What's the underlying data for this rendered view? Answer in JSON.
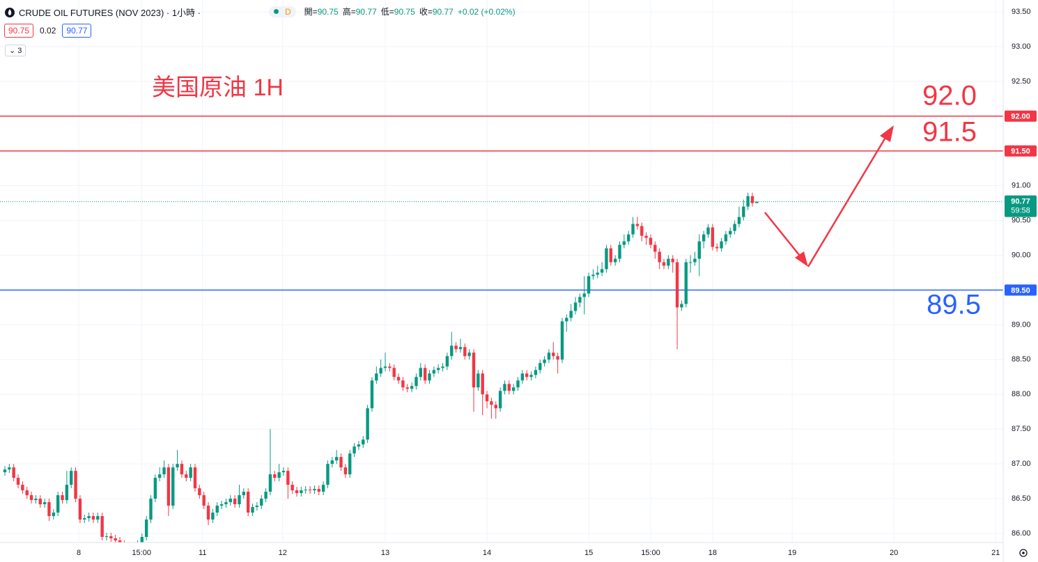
{
  "chart_data": {
    "type": "candlestick",
    "up_color": "#089981",
    "down_color": "#f23645",
    "grid": true,
    "title": "美国原油 1H",
    "ylim": [
      85.87,
      93.67
    ],
    "xlim": [
      -1.1,
      225.7
    ],
    "yticks": [
      {
        "value": 86,
        "label": "86.00"
      },
      {
        "value": 86.5,
        "label": "86.50"
      },
      {
        "value": 87,
        "label": "87.00"
      },
      {
        "value": 87.5,
        "label": "87.50"
      },
      {
        "value": 88,
        "label": "88.00"
      },
      {
        "value": 88.5,
        "label": "88.50"
      },
      {
        "value": 89,
        "label": "89.00"
      },
      {
        "value": 89.5,
        "label": "89.50"
      },
      {
        "value": 90,
        "label": "90.00"
      },
      {
        "value": 90.5,
        "label": "90.50"
      },
      {
        "value": 91,
        "label": "91.00"
      },
      {
        "value": 91.5,
        "label": "91.50"
      },
      {
        "value": 92,
        "label": "92.00"
      },
      {
        "value": 92.5,
        "label": "92.50"
      },
      {
        "value": 93,
        "label": "93.00"
      },
      {
        "value": 93.5,
        "label": "93.50"
      }
    ],
    "xticks": [
      {
        "value": 16.7,
        "label": "8"
      },
      {
        "value": 30.9,
        "label": "15:00"
      },
      {
        "value": 44.7,
        "label": "11"
      },
      {
        "value": 62.8,
        "label": "12"
      },
      {
        "value": 86,
        "label": "13"
      },
      {
        "value": 109,
        "label": "14"
      },
      {
        "value": 132,
        "label": "15"
      },
      {
        "value": 146,
        "label": "15:00"
      },
      {
        "value": 160,
        "label": "18"
      },
      {
        "value": 178,
        "label": "19"
      },
      {
        "value": 201,
        "label": "20"
      },
      {
        "value": 224,
        "label": "21"
      }
    ],
    "open": [
      86.88,
      86.92,
      86.95,
      86.8,
      86.7,
      86.62,
      86.55,
      86.48,
      86.5,
      86.42,
      86.45,
      86.25,
      86.3,
      86.55,
      86.48,
      86.7,
      86.9,
      86.5,
      86.2,
      86.22,
      86.25,
      86.2,
      86.25,
      85.95,
      85.96,
      85.93,
      85.9,
      85.85,
      85.8,
      85.8,
      85.82,
      85.85,
      85.95,
      86.2,
      86.5,
      86.8,
      86.85,
      86.95,
      86.4,
      86.95,
      87.0,
      86.85,
      86.8,
      86.95,
      86.65,
      86.55,
      86.4,
      86.2,
      86.3,
      86.4,
      86.42,
      86.45,
      86.5,
      86.42,
      86.55,
      86.6,
      86.3,
      86.38,
      86.4,
      86.5,
      86.6,
      86.85,
      86.8,
      86.88,
      86.9,
      86.7,
      86.62,
      86.58,
      86.62,
      86.63,
      86.62,
      86.64,
      86.6,
      86.7,
      87.0,
      87.05,
      87.1,
      86.95,
      86.85,
      87.15,
      87.25,
      87.28,
      87.35,
      87.8,
      88.2,
      88.3,
      88.38,
      88.4,
      88.38,
      88.25,
      88.2,
      88.1,
      88.08,
      88.12,
      88.25,
      88.38,
      88.2,
      88.3,
      88.35,
      88.38,
      88.4,
      88.55,
      88.7,
      88.65,
      88.68,
      88.55,
      88.6,
      88.1,
      88.3,
      88.0,
      87.9,
      87.85,
      87.8,
      88.05,
      88.15,
      88.05,
      88.1,
      88.2,
      88.3,
      88.25,
      88.28,
      88.35,
      88.45,
      88.5,
      88.6,
      88.55,
      88.5,
      89.05,
      89.1,
      89.2,
      89.32,
      89.4,
      89.45,
      89.7,
      89.72,
      89.75,
      89.8,
      90.1,
      89.9,
      89.95,
      90.15,
      90.2,
      90.3,
      90.45,
      90.42,
      90.28,
      90.25,
      90.15,
      90.05,
      89.9,
      89.85,
      89.95,
      89.9,
      89.25,
      89.3,
      89.9,
      89.9,
      89.95,
      90.2,
      90.3,
      90.4,
      90.12,
      90.1,
      90.2,
      90.3,
      90.35,
      90.45,
      90.55,
      90.7,
      90.85,
      90.75
    ],
    "high": [
      86.97,
      87.0,
      87.0,
      86.85,
      86.75,
      86.67,
      86.6,
      86.55,
      86.55,
      86.5,
      86.5,
      86.35,
      86.6,
      86.6,
      86.9,
      86.95,
      86.95,
      86.55,
      86.27,
      86.3,
      86.3,
      86.3,
      86.3,
      86.01,
      86.01,
      85.98,
      85.95,
      85.9,
      85.85,
      85.87,
      85.9,
      86.0,
      86.25,
      86.55,
      86.85,
      86.95,
      87.05,
      87.0,
      87.0,
      87.2,
      87.05,
      86.9,
      87.0,
      87.0,
      86.7,
      86.6,
      86.45,
      86.35,
      86.45,
      86.47,
      86.5,
      86.55,
      86.55,
      86.7,
      86.65,
      86.65,
      86.43,
      86.45,
      86.55,
      86.65,
      87.5,
      86.9,
      87.0,
      86.95,
      86.95,
      86.75,
      86.67,
      86.67,
      86.68,
      86.68,
      86.69,
      86.69,
      86.75,
      87.05,
      87.1,
      87.2,
      87.15,
      87.0,
      87.2,
      87.3,
      87.33,
      87.4,
      87.85,
      88.25,
      88.4,
      88.5,
      88.6,
      88.45,
      88.43,
      88.3,
      88.25,
      88.15,
      88.17,
      88.3,
      88.45,
      88.43,
      88.35,
      88.4,
      88.43,
      88.45,
      88.6,
      88.9,
      88.75,
      88.8,
      88.73,
      88.65,
      88.65,
      88.35,
      88.35,
      88.05,
      87.95,
      87.9,
      88.1,
      88.2,
      88.2,
      88.15,
      88.25,
      88.35,
      88.35,
      88.33,
      88.4,
      88.5,
      88.55,
      88.65,
      88.75,
      88.6,
      89.1,
      89.15,
      89.3,
      89.4,
      89.45,
      89.7,
      89.75,
      89.8,
      89.85,
      89.9,
      90.15,
      90.15,
      90.0,
      90.2,
      90.3,
      90.35,
      90.55,
      90.55,
      90.47,
      90.33,
      90.3,
      90.2,
      90.1,
      89.95,
      90.0,
      90.0,
      89.95,
      89.35,
      89.95,
      90.0,
      90.05,
      90.3,
      90.35,
      90.45,
      90.45,
      90.17,
      90.25,
      90.35,
      90.4,
      90.5,
      90.7,
      90.8,
      90.9,
      90.9,
      90.77
    ],
    "low": [
      86.83,
      86.87,
      86.75,
      86.65,
      86.57,
      86.5,
      86.43,
      86.43,
      86.37,
      86.37,
      86.18,
      86.2,
      86.25,
      86.43,
      86.43,
      86.65,
      86.45,
      86.15,
      86.15,
      86.17,
      86.15,
      86.15,
      85.9,
      85.9,
      85.88,
      85.85,
      85.8,
      85.75,
      85.75,
      85.75,
      85.77,
      85.8,
      85.9,
      86.15,
      86.45,
      86.75,
      86.8,
      86.25,
      86.35,
      86.9,
      86.8,
      86.75,
      86.75,
      86.6,
      86.5,
      86.35,
      86.12,
      86.15,
      86.25,
      86.35,
      86.37,
      86.4,
      86.37,
      86.37,
      86.5,
      86.25,
      86.25,
      86.33,
      86.35,
      86.45,
      86.55,
      86.75,
      86.75,
      86.83,
      86.5,
      86.57,
      86.53,
      86.53,
      86.57,
      86.57,
      86.57,
      86.55,
      86.55,
      86.65,
      86.95,
      87.0,
      86.9,
      86.8,
      86.8,
      87.1,
      87.2,
      87.23,
      87.3,
      87.75,
      88.15,
      88.25,
      88.33,
      88.33,
      88.2,
      88.15,
      88.05,
      88.03,
      88.03,
      88.07,
      88.2,
      88.15,
      88.15,
      88.25,
      88.3,
      88.33,
      88.35,
      88.5,
      88.6,
      88.6,
      88.5,
      88.5,
      87.75,
      88.05,
      87.7,
      87.8,
      87.65,
      87.65,
      87.75,
      88.0,
      88.0,
      88.0,
      88.05,
      88.15,
      88.2,
      88.2,
      88.23,
      88.3,
      88.4,
      88.45,
      88.5,
      88.3,
      88.45,
      88.9,
      89.05,
      89.15,
      89.25,
      89.15,
      89.4,
      89.65,
      89.67,
      89.7,
      89.75,
      89.85,
      89.85,
      89.9,
      90.1,
      90.15,
      90.25,
      90.37,
      90.2,
      90.15,
      90.1,
      89.95,
      89.8,
      89.8,
      89.8,
      89.75,
      88.65,
      89.2,
      89.25,
      89.75,
      89.85,
      89.7,
      90.1,
      90.25,
      90.07,
      90.05,
      90.05,
      90.15,
      90.25,
      90.3,
      90.4,
      90.5,
      90.65,
      90.7,
      90.75
    ],
    "close": [
      86.92,
      86.95,
      86.8,
      86.7,
      86.62,
      86.55,
      86.48,
      86.5,
      86.42,
      86.45,
      86.25,
      86.3,
      86.55,
      86.48,
      86.7,
      86.9,
      86.5,
      86.2,
      86.22,
      86.25,
      86.2,
      86.25,
      85.95,
      85.96,
      85.93,
      85.9,
      85.85,
      85.8,
      85.8,
      85.82,
      85.85,
      85.95,
      86.2,
      86.5,
      86.8,
      86.85,
      86.95,
      86.4,
      86.95,
      87.0,
      86.85,
      86.8,
      86.95,
      86.65,
      86.55,
      86.4,
      86.2,
      86.3,
      86.4,
      86.42,
      86.45,
      86.5,
      86.42,
      86.55,
      86.6,
      86.3,
      86.38,
      86.4,
      86.5,
      86.6,
      86.85,
      86.8,
      86.88,
      86.9,
      86.7,
      86.62,
      86.58,
      86.62,
      86.63,
      86.62,
      86.64,
      86.6,
      86.7,
      87.0,
      87.05,
      87.1,
      86.95,
      86.85,
      87.15,
      87.25,
      87.28,
      87.35,
      87.8,
      88.2,
      88.3,
      88.38,
      88.4,
      88.38,
      88.25,
      88.2,
      88.1,
      88.08,
      88.12,
      88.25,
      88.38,
      88.2,
      88.3,
      88.35,
      88.38,
      88.4,
      88.55,
      88.7,
      88.65,
      88.68,
      88.55,
      88.6,
      88.1,
      88.3,
      88.0,
      87.9,
      87.85,
      87.8,
      88.05,
      88.15,
      88.05,
      88.1,
      88.2,
      88.3,
      88.25,
      88.28,
      88.35,
      88.45,
      88.5,
      88.6,
      88.55,
      88.5,
      89.05,
      89.1,
      89.2,
      89.32,
      89.4,
      89.45,
      89.7,
      89.72,
      89.75,
      89.8,
      90.1,
      89.9,
      89.95,
      90.15,
      90.2,
      90.3,
      90.45,
      90.42,
      90.28,
      90.25,
      90.15,
      90.05,
      89.9,
      89.85,
      89.95,
      89.9,
      89.25,
      89.3,
      89.9,
      89.9,
      89.95,
      90.2,
      90.3,
      90.4,
      90.12,
      90.1,
      90.2,
      90.3,
      90.35,
      90.45,
      90.55,
      90.7,
      90.85,
      90.75,
      90.77
    ],
    "hlines": [
      {
        "value": 92,
        "label": "92.00",
        "color": "#f23645"
      },
      {
        "value": 91.5,
        "label": "91.50",
        "color": "#f23645"
      },
      {
        "value": 89.5,
        "label": "89.50",
        "color": "#2962ff"
      }
    ],
    "annotations": [
      {
        "text": "92.0",
        "color": "#f23645"
      },
      {
        "text": "91.5",
        "color": "#f23645"
      },
      {
        "text": "89.5",
        "color": "#2962ff"
      }
    ],
    "last_price": {
      "value": 90.77,
      "label": "90.77",
      "countdown": "59:58",
      "color": "#089981"
    }
  },
  "header": {
    "symbol": "CRUDE OIL FUTURES (NOV 2023) · 1小時 ·",
    "badge": "D",
    "ohlc": [
      {
        "label": "開=",
        "value": "90.75"
      },
      {
        "label": "高=",
        "value": "90.77"
      },
      {
        "label": "低=",
        "value": "90.75"
      },
      {
        "label": "收=",
        "value": "90.77"
      }
    ],
    "change": "+0.02 (+0.02%)",
    "sell": "90.75",
    "spread": "0.02",
    "buy": "90.77",
    "indicators": "3"
  }
}
